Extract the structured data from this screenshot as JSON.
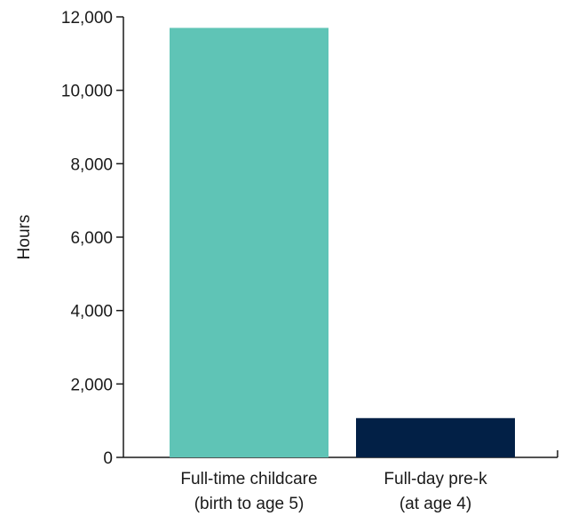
{
  "chart_data": {
    "type": "bar",
    "title": "",
    "xlabel": "",
    "ylabel": "Hours",
    "ylim": [
      0,
      12000
    ],
    "yticks": [
      0,
      2000,
      4000,
      6000,
      8000,
      10000,
      12000
    ],
    "ytick_labels": [
      "0",
      "2,000",
      "4,000",
      "6,000",
      "8,000",
      "10,000",
      "12,000"
    ],
    "categories": [
      [
        "Full-time childcare",
        "(birth to age 5)"
      ],
      [
        "Full-day pre-k",
        "(at age 4)"
      ]
    ],
    "values": [
      11700,
      1070
    ],
    "colors": [
      "#5fc4b6",
      "#022046"
    ],
    "grid": false,
    "legend": "none"
  }
}
